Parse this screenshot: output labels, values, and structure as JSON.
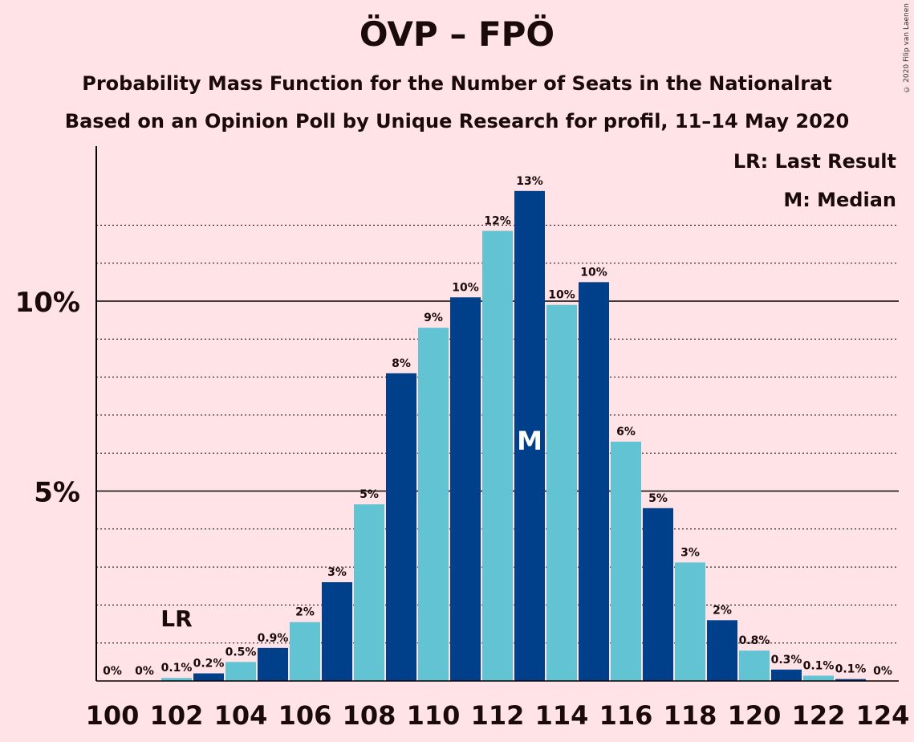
{
  "title": "ÖVP – FPÖ",
  "subtitle1": "Probability Mass Function for the Number of Seats in the Nationalrat",
  "subtitle2": "Based on an Opinion Poll by Unique Research for profil, 11–14 May 2020",
  "copyright": "© 2020 Filip van Laenen",
  "legend": {
    "lr": "LR: Last Result",
    "median": "M: Median"
  },
  "markers": {
    "lr_label": "LR",
    "median_label": "M"
  },
  "colors": {
    "dark": "#003f8a",
    "light": "#62c3d3",
    "background": "#ffe3e6"
  },
  "chart_data": {
    "type": "bar",
    "categories": [
      100,
      101,
      102,
      103,
      104,
      105,
      106,
      107,
      108,
      109,
      110,
      111,
      112,
      113,
      114,
      115,
      116,
      117,
      118,
      119,
      120,
      121,
      122,
      123,
      124
    ],
    "values": [
      0,
      0,
      0.08,
      0.2,
      0.5,
      0.87,
      1.55,
      2.6,
      4.65,
      8.1,
      9.3,
      10.1,
      11.85,
      12.9,
      9.9,
      10.5,
      6.3,
      4.55,
      3.12,
      1.6,
      0.8,
      0.3,
      0.14,
      0.05,
      0
    ],
    "labels": [
      "0%",
      "0%",
      "0.1%",
      "0.2%",
      "0.5%",
      "0.9%",
      "2%",
      "3%",
      "5%",
      "8%",
      "9%",
      "10%",
      "12%",
      "13%",
      "10%",
      "10%",
      "6%",
      "5%",
      "3%",
      "2%",
      "0.8%",
      "0.3%",
      "0.1%",
      "0.1%",
      "0%"
    ],
    "xticks": [
      "100",
      "102",
      "104",
      "106",
      "108",
      "110",
      "112",
      "114",
      "116",
      "118",
      "120",
      "122",
      "124"
    ],
    "yticks": [
      {
        "value": 5,
        "label": "5%"
      },
      {
        "value": 10,
        "label": "10%"
      }
    ],
    "ylim": [
      0,
      14
    ],
    "last_result": 102,
    "median": 113,
    "grid": true
  }
}
